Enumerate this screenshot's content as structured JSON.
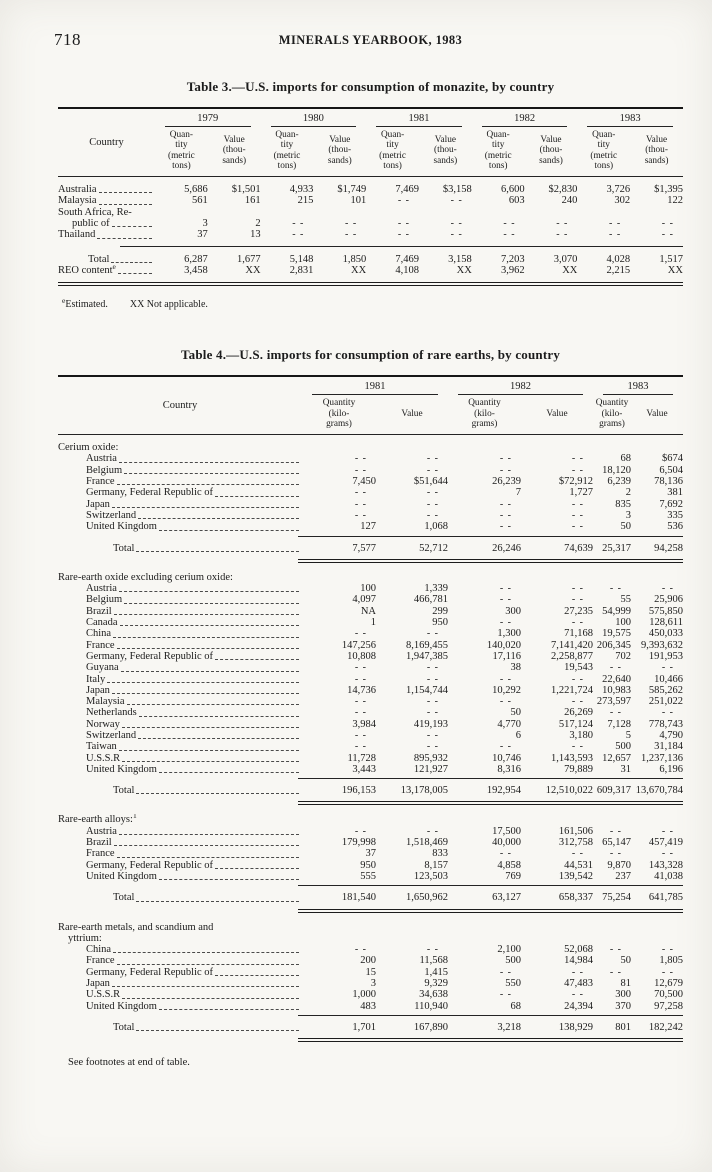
{
  "page": {
    "number": "718",
    "running_head": "MINERALS YEARBOOK, 1983",
    "footer_note": "See footnotes at end of table."
  },
  "table3": {
    "title": "Table 3.—U.S. imports for consumption of monazite, by country",
    "country_header": "Country",
    "years": [
      "1979",
      "1980",
      "1981",
      "1982",
      "1983"
    ],
    "quantity_subhead": "Quan-\ntity\n(metric\ntons)",
    "value_subhead": "Value\n(thou-\nsands)",
    "rows": [
      {
        "label": "Australia",
        "values": [
          "5,686",
          "$1,501",
          "4,933",
          "$1,749",
          "7,469",
          "$3,158",
          "6,600",
          "$2,830",
          "3,726",
          "$1,395"
        ]
      },
      {
        "label": "Malaysia",
        "values": [
          "561",
          "161",
          "215",
          "101",
          "- -",
          "- -",
          "603",
          "240",
          "302",
          "122"
        ]
      },
      {
        "label": "South Africa, Re-",
        "label2": "public of",
        "values": [
          "3",
          "2",
          "- -",
          "- -",
          "- -",
          "- -",
          "- -",
          "- -",
          "- -",
          "- -"
        ]
      },
      {
        "label": "Thailand",
        "values": [
          "37",
          "13",
          "- -",
          "- -",
          "- -",
          "- -",
          "- -",
          "- -",
          "- -",
          "- -"
        ]
      }
    ],
    "summary_rows": [
      {
        "label": "Total",
        "indent": 30,
        "values": [
          "6,287",
          "1,677",
          "5,148",
          "1,850",
          "7,469",
          "3,158",
          "7,203",
          "3,070",
          "4,028",
          "1,517"
        ]
      },
      {
        "label": "REO content",
        "sup": "e",
        "indent": 0,
        "values": [
          "3,458",
          "XX",
          "2,831",
          "XX",
          "4,108",
          "XX",
          "3,962",
          "XX",
          "2,215",
          "XX"
        ]
      }
    ],
    "footnote": {
      "sup": "e",
      "estimated": "Estimated.",
      "not_applicable": "XX Not applicable."
    }
  },
  "table4": {
    "title": "Table 4.—U.S. imports for consumption of rare earths, by country",
    "country_header": "Country",
    "years": [
      "1981",
      "1982",
      "1983"
    ],
    "quantity_subhead": "Quantity\n(kilo-\ngrams)",
    "value_subhead": "Value",
    "sections": [
      {
        "heading": "Cerium oxide:",
        "rows": [
          {
            "label": "Austria",
            "values": [
              "- -",
              "- -",
              "- -",
              "- -",
              "68",
              "$674"
            ]
          },
          {
            "label": "Belgium",
            "values": [
              "- -",
              "- -",
              "- -",
              "- -",
              "18,120",
              "6,504"
            ]
          },
          {
            "label": "France",
            "values": [
              "7,450",
              "$51,644",
              "26,239",
              "$72,912",
              "6,239",
              "78,136"
            ]
          },
          {
            "label": "Germany, Federal Republic of",
            "values": [
              "- -",
              "- -",
              "7",
              "1,727",
              "2",
              "381"
            ]
          },
          {
            "label": "Japan",
            "values": [
              "- -",
              "- -",
              "- -",
              "- -",
              "835",
              "7,692"
            ]
          },
          {
            "label": "Switzerland",
            "values": [
              "- -",
              "- -",
              "- -",
              "- -",
              "3",
              "335"
            ]
          },
          {
            "label": "United Kingdom",
            "values": [
              "127",
              "1,068",
              "- -",
              "- -",
              "50",
              "536"
            ]
          }
        ],
        "total": {
          "label": "Total",
          "values": [
            "7,577",
            "52,712",
            "26,246",
            "74,639",
            "25,317",
            "94,258"
          ]
        }
      },
      {
        "heading": "Rare-earth oxide excluding cerium oxide:",
        "rows": [
          {
            "label": "Austria",
            "values": [
              "100",
              "1,339",
              "- -",
              "- -",
              "- -",
              "- -"
            ]
          },
          {
            "label": "Belgium",
            "values": [
              "4,097",
              "466,781",
              "- -",
              "- -",
              "55",
              "25,906"
            ]
          },
          {
            "label": "Brazil",
            "values": [
              "NA",
              "299",
              "300",
              "27,235",
              "54,999",
              "575,850"
            ]
          },
          {
            "label": "Canada",
            "values": [
              "1",
              "950",
              "- -",
              "- -",
              "100",
              "128,611"
            ]
          },
          {
            "label": "China",
            "values": [
              "- -",
              "- -",
              "1,300",
              "71,168",
              "19,575",
              "450,033"
            ]
          },
          {
            "label": "France",
            "values": [
              "147,256",
              "8,169,455",
              "140,020",
              "7,141,420",
              "206,345",
              "9,393,632"
            ]
          },
          {
            "label": "Germany, Federal Republic of",
            "values": [
              "10,808",
              "1,947,385",
              "17,116",
              "2,258,877",
              "702",
              "191,953"
            ]
          },
          {
            "label": "Guyana",
            "values": [
              "- -",
              "- -",
              "38",
              "19,543",
              "- -",
              "- -"
            ]
          },
          {
            "label": "Italy",
            "values": [
              "- -",
              "- -",
              "- -",
              "- -",
              "22,640",
              "10,466"
            ]
          },
          {
            "label": "Japan",
            "values": [
              "14,736",
              "1,154,744",
              "10,292",
              "1,221,724",
              "10,983",
              "585,262"
            ]
          },
          {
            "label": "Malaysia",
            "values": [
              "- -",
              "- -",
              "- -",
              "- -",
              "273,597",
              "251,022"
            ]
          },
          {
            "label": "Netherlands",
            "values": [
              "- -",
              "- -",
              "50",
              "26,269",
              "- -",
              "- -"
            ]
          },
          {
            "label": "Norway",
            "values": [
              "3,984",
              "419,193",
              "4,770",
              "517,124",
              "7,128",
              "778,743"
            ]
          },
          {
            "label": "Switzerland",
            "values": [
              "- -",
              "- -",
              "6",
              "3,180",
              "5",
              "4,790"
            ]
          },
          {
            "label": "Taiwan",
            "values": [
              "- -",
              "- -",
              "- -",
              "- -",
              "500",
              "31,184"
            ]
          },
          {
            "label": "U.S.S.R",
            "values": [
              "11,728",
              "895,932",
              "10,746",
              "1,143,593",
              "12,657",
              "1,237,136"
            ]
          },
          {
            "label": "United Kingdom",
            "values": [
              "3,443",
              "121,927",
              "8,316",
              "79,889",
              "31",
              "6,196"
            ]
          }
        ],
        "total": {
          "label": "Total",
          "values": [
            "196,153",
            "13,178,005",
            "192,954",
            "12,510,022",
            "609,317",
            "13,670,784"
          ]
        }
      },
      {
        "heading": "Rare-earth alloys:",
        "sup": "1",
        "rows": [
          {
            "label": "Austria",
            "values": [
              "- -",
              "- -",
              "17,500",
              "161,506",
              "- -",
              "- -"
            ]
          },
          {
            "label": "Brazil",
            "values": [
              "179,998",
              "1,518,469",
              "40,000",
              "312,758",
              "65,147",
              "457,419"
            ]
          },
          {
            "label": "France",
            "values": [
              "37",
              "833",
              "- -",
              "- -",
              "- -",
              "- -"
            ]
          },
          {
            "label": "Germany, Federal Republic of",
            "values": [
              "950",
              "8,157",
              "4,858",
              "44,531",
              "9,870",
              "143,328"
            ]
          },
          {
            "label": "United Kingdom",
            "values": [
              "555",
              "123,503",
              "769",
              "139,542",
              "237",
              "41,038"
            ]
          }
        ],
        "total": {
          "label": "Total",
          "values": [
            "181,540",
            "1,650,962",
            "63,127",
            "658,337",
            "75,254",
            "641,785"
          ]
        }
      },
      {
        "heading": "Rare-earth metals, and scandium and",
        "heading2": "yttrium:",
        "rows": [
          {
            "label": "China",
            "values": [
              "- -",
              "- -",
              "2,100",
              "52,068",
              "- -",
              "- -"
            ]
          },
          {
            "label": "France",
            "values": [
              "200",
              "11,568",
              "500",
              "14,984",
              "50",
              "1,805"
            ]
          },
          {
            "label": "Germany, Federal Republic of",
            "values": [
              "15",
              "1,415",
              "- -",
              "- -",
              "- -",
              "- -"
            ]
          },
          {
            "label": "Japan",
            "values": [
              "3",
              "9,329",
              "550",
              "47,483",
              "81",
              "12,679"
            ]
          },
          {
            "label": "U.S.S.R",
            "values": [
              "1,000",
              "34,638",
              "- -",
              "- -",
              "300",
              "70,500"
            ]
          },
          {
            "label": "United Kingdom",
            "values": [
              "483",
              "110,940",
              "68",
              "24,394",
              "370",
              "97,258"
            ]
          }
        ],
        "total": {
          "label": "Total",
          "values": [
            "1,701",
            "167,890",
            "3,218",
            "138,929",
            "801",
            "182,242"
          ]
        }
      }
    ]
  }
}
